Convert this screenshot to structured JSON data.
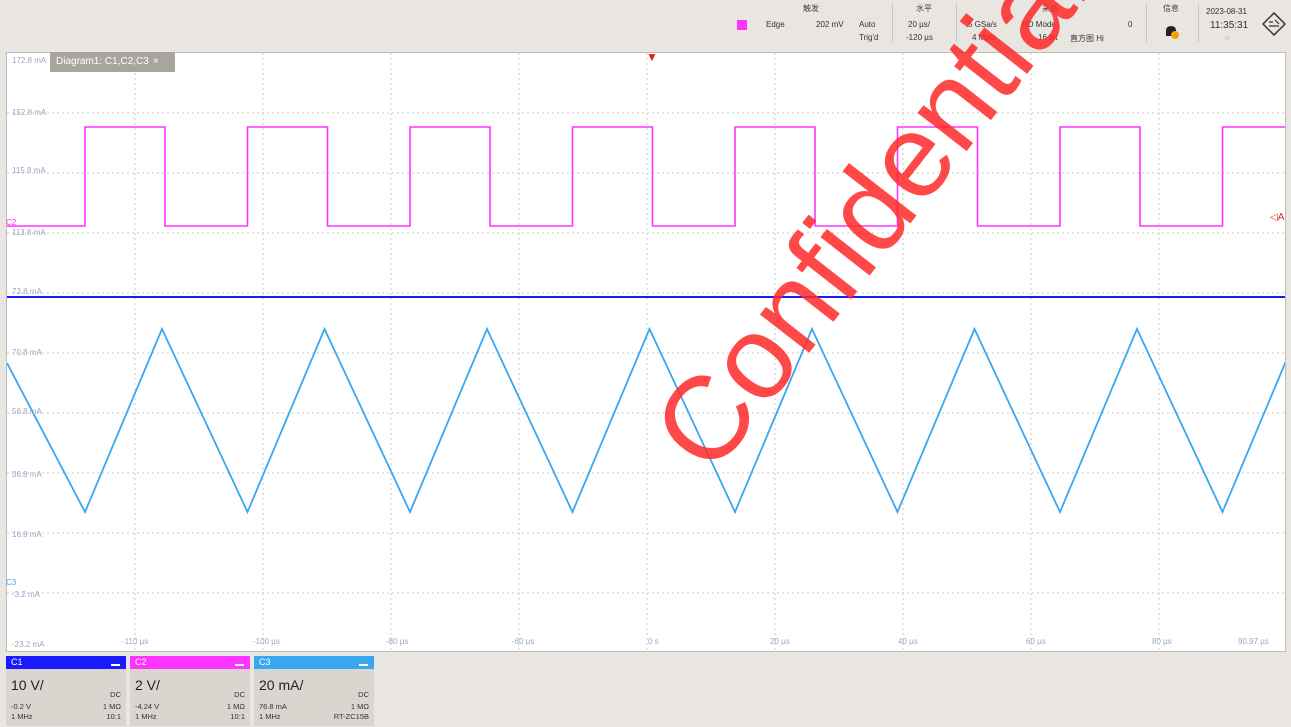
{
  "topbar": {
    "trigger": {
      "header": "触发",
      "type": "Edge",
      "level": "202 mV",
      "mode": "Auto",
      "coupling": "Trig'd"
    },
    "horizontal": {
      "header": "水平",
      "time_scale": "20 µs/",
      "position": "-120 µs"
    },
    "acquisition": {
      "header": "采集",
      "sample_rate": "5 GSa/s",
      "record_mode": "HD Mode",
      "count": "0",
      "points": "4 Mpts",
      "resolution": "16 bit",
      "decimation": "直方图 Hi"
    },
    "info": {
      "header": "信息"
    },
    "datetime": {
      "date": "2023-08-31",
      "time": "11:35:31"
    }
  },
  "diagram_tab": {
    "label": "Diagram1: C1,C2,C3",
    "close": "×"
  },
  "y_labels": [
    "172.8 mA",
    "152.8 mA",
    "115.8 mA",
    "113.8 mA",
    "73.8 mA",
    "70.8 mA",
    "56.8 mA",
    "36.8 mA",
    "16.8 mA",
    "-3.2 mA",
    "-23.2 mA"
  ],
  "x_labels": [
    "-110 µs",
    "-100 µs",
    "-80 µs",
    "-60 µs",
    "0 s",
    "20 µs",
    "40 µs",
    "60 µs",
    "80 µs",
    "90.97 µs"
  ],
  "markers": {
    "c2_level": "C2",
    "c3_level": "C3",
    "right": "◁A"
  },
  "watermark": "Confidential",
  "colors": {
    "c1": "#1a1aff",
    "c2": "#ff33ff",
    "c3": "#39a7f0",
    "watermark": "#ff2a2a"
  },
  "channels": [
    {
      "name": "C1",
      "scale": "10 V/",
      "coupling": "DC",
      "offset": "-0.2 V",
      "impedance": "1 MΩ",
      "bandwidth": "1 MHz",
      "probe": "10:1"
    },
    {
      "name": "C2",
      "scale": "2 V/",
      "coupling": "DC",
      "offset": "-4.24 V",
      "impedance": "1 MΩ",
      "bandwidth": "1 MHz",
      "probe": "10:1"
    },
    {
      "name": "C3",
      "scale": "20 mA/",
      "coupling": "DC",
      "offset": "76.8 mA",
      "impedance": "1 MΩ",
      "bandwidth": "1 MHz",
      "probe": "RT-ZC15B"
    }
  ]
}
